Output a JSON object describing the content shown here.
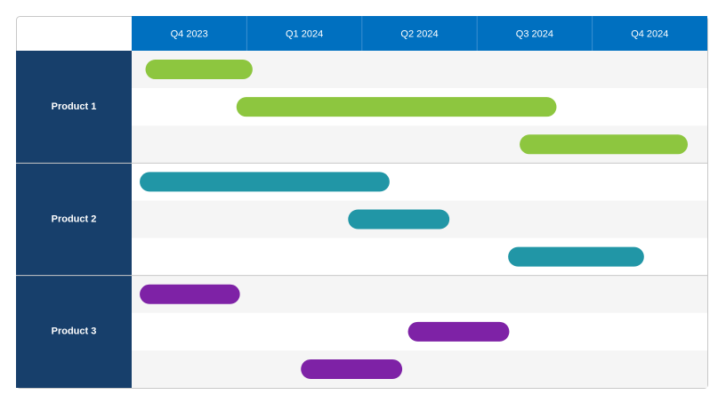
{
  "chart_data": {
    "type": "gantt",
    "categories": [
      "Q4 2023",
      "Q1 2024",
      "Q2 2024",
      "Q3 2024",
      "Q4 2024"
    ],
    "xlim": [
      0,
      5
    ],
    "groups": [
      {
        "name": "Product 1",
        "color": "#8dc63f",
        "tasks": [
          {
            "start": 0.12,
            "end": 1.05
          },
          {
            "start": 0.91,
            "end": 3.69
          },
          {
            "start": 3.37,
            "end": 4.83
          }
        ]
      },
      {
        "name": "Product 2",
        "color": "#2196a6",
        "tasks": [
          {
            "start": 0.07,
            "end": 2.24
          },
          {
            "start": 1.88,
            "end": 2.76
          },
          {
            "start": 3.27,
            "end": 4.45
          }
        ]
      },
      {
        "name": "Product 3",
        "color": "#7e22a6",
        "tasks": [
          {
            "start": 0.07,
            "end": 0.94
          },
          {
            "start": 2.4,
            "end": 3.28
          },
          {
            "start": 1.47,
            "end": 2.35
          }
        ]
      }
    ]
  }
}
